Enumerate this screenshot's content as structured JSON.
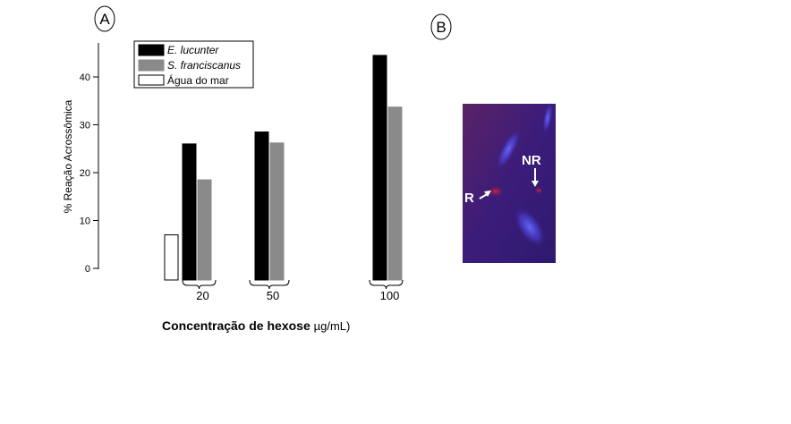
{
  "panels": {
    "a_label": "A",
    "b_label": "B"
  },
  "chart_data": {
    "type": "bar",
    "ylabel": "% Reação Acrossômica",
    "xlabel_main": "Concentração de hexose ",
    "xlabel_unit": "µg/mL)",
    "ylim": [
      0,
      45
    ],
    "yticks": [
      0,
      10,
      20,
      30,
      40
    ],
    "grid": false,
    "legend_position": "top-left",
    "control": {
      "name": "Água do mar",
      "value": 7,
      "color": "#ffffff"
    },
    "categories": [
      "20",
      "50",
      "100"
    ],
    "series": [
      {
        "name": "E. lucunter",
        "values": [
          26,
          28.5,
          44.5
        ],
        "color": "#000000",
        "italic": true
      },
      {
        "name": "S. franciscanus",
        "values": [
          18.5,
          26.2,
          33.7
        ],
        "color": "#8a8a8a",
        "italic": true
      }
    ]
  },
  "micrograph": {
    "label_r": "R",
    "label_nr": "NR",
    "background_color": "#3b1c7a"
  }
}
